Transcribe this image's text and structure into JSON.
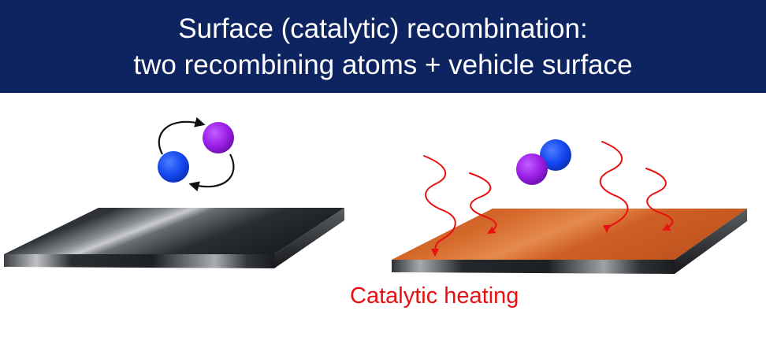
{
  "header": {
    "line1": "Surface (catalytic) recombination:",
    "line2": "two recombining atoms + vehicle surface"
  },
  "labels": {
    "catalytic_heating": "Catalytic heating"
  },
  "colors": {
    "banner": "#0d2460",
    "atom_blue": "#1347f0",
    "atom_purple": "#9a1ee6",
    "heat_arrow": "#e81010",
    "caption": "#e81010",
    "plate_dark": "#1c1f24",
    "plate_hot": "#d5642a"
  },
  "icons": {
    "left": "recombination-cycle-arrows",
    "right": "heat-flux-wavy-arrows"
  }
}
